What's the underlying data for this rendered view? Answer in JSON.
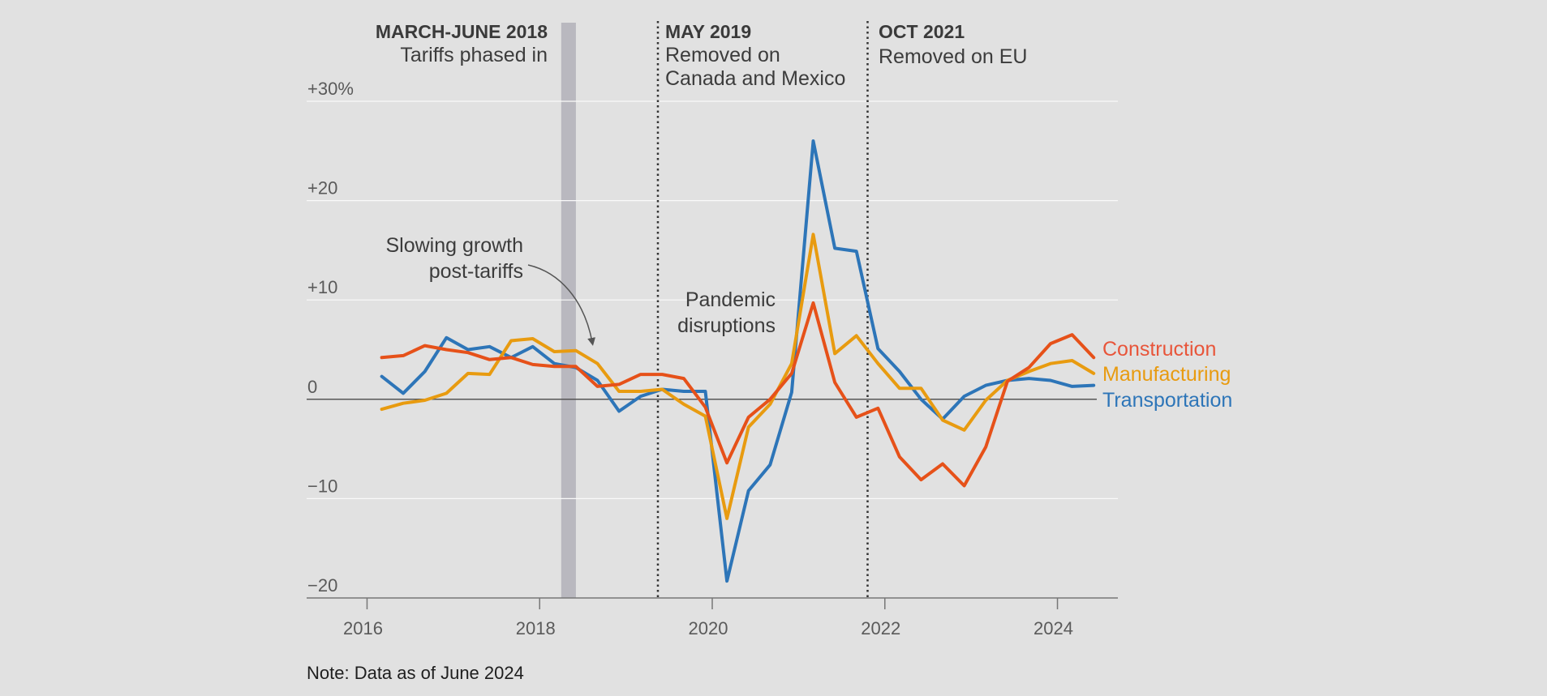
{
  "chart_data": {
    "type": "line",
    "title": "",
    "xlabel": "",
    "ylabel": "",
    "xlim": [
      2015.3,
      2024.7
    ],
    "ylim": [
      -20,
      30
    ],
    "x_ticks": [
      2016,
      2018,
      2020,
      2022,
      2024
    ],
    "x_tick_labels": [
      "2016",
      "2018",
      "2020",
      "2022",
      "2024"
    ],
    "y_ticks": [
      30,
      20,
      10,
      0,
      -10,
      -20
    ],
    "y_tick_labels": [
      "+30%",
      "+20",
      "+10",
      "0",
      "−10",
      "−20"
    ],
    "grid": true,
    "x": [
      2016.17,
      2016.42,
      2016.67,
      2016.92,
      2017.17,
      2017.42,
      2017.67,
      2017.92,
      2018.17,
      2018.42,
      2018.67,
      2018.92,
      2019.17,
      2019.42,
      2019.67,
      2019.92,
      2020.17,
      2020.42,
      2020.67,
      2020.92,
      2021.17,
      2021.42,
      2021.67,
      2021.92,
      2022.17,
      2022.42,
      2022.67,
      2022.92,
      2023.17,
      2023.42,
      2023.67,
      2023.92,
      2024.17,
      2024.42
    ],
    "series": [
      {
        "name": "Construction",
        "color": "#e65119",
        "values": [
          4.2,
          4.4,
          5.4,
          5.0,
          4.7,
          4.0,
          4.2,
          3.5,
          3.3,
          3.3,
          1.3,
          1.5,
          2.5,
          2.5,
          2.1,
          -0.8,
          -6.4,
          -1.8,
          0.0,
          2.6,
          9.7,
          1.7,
          -1.8,
          -0.9,
          -5.8,
          -8.1,
          -6.5,
          -8.7,
          -4.8,
          1.8,
          3.2,
          5.6,
          6.5,
          4.2
        ]
      },
      {
        "name": "Manufacturing",
        "color": "#e89b10",
        "values": [
          -1.0,
          -0.4,
          -0.1,
          0.6,
          2.6,
          2.5,
          5.9,
          6.1,
          4.8,
          4.9,
          3.6,
          0.8,
          0.8,
          1.0,
          -0.5,
          -1.7,
          -12.0,
          -2.8,
          -0.5,
          3.6,
          16.6,
          4.6,
          6.4,
          3.6,
          1.1,
          1.1,
          -2.1,
          -3.1,
          -0.1,
          1.9,
          2.8,
          3.6,
          3.9,
          2.6
        ]
      },
      {
        "name": "Transportation",
        "color": "#2d75b8",
        "values": [
          2.3,
          0.6,
          2.8,
          6.2,
          5.0,
          5.3,
          4.2,
          5.3,
          3.6,
          3.2,
          1.9,
          -1.2,
          0.3,
          1.0,
          0.8,
          0.8,
          -18.3,
          -9.2,
          -6.6,
          0.7,
          26.0,
          15.2,
          14.9,
          5.1,
          2.8,
          0.0,
          -2.0,
          0.3,
          1.4,
          1.9,
          2.1,
          1.9,
          1.3,
          1.4
        ]
      }
    ],
    "shaded_period": {
      "from": 2018.25,
      "to": 2018.42,
      "title": "MARCH-JUNE 2018",
      "text": "Tariffs phased in"
    },
    "events": [
      {
        "x": 2019.37,
        "title": "MAY 2019",
        "lines": [
          "Removed on",
          "Canada and Mexico"
        ]
      },
      {
        "x": 2021.8,
        "title": "OCT 2021",
        "lines": [
          "Removed on EU"
        ]
      }
    ],
    "annotations": {
      "slowing": [
        "Slowing growth",
        "post-tariffs"
      ],
      "pandemic": [
        "Pandemic",
        "disruptions"
      ]
    },
    "note": "Note: Data as of June 2024"
  }
}
